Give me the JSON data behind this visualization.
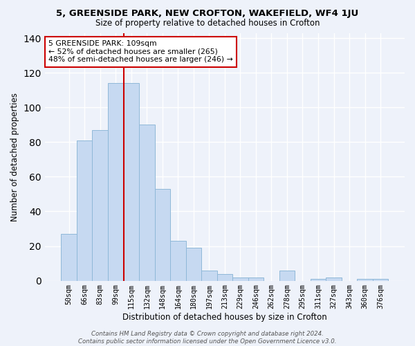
{
  "title1": "5, GREENSIDE PARK, NEW CROFTON, WAKEFIELD, WF4 1JU",
  "title2": "Size of property relative to detached houses in Crofton",
  "xlabel": "Distribution of detached houses by size in Crofton",
  "ylabel": "Number of detached properties",
  "bar_labels": [
    "50sqm",
    "66sqm",
    "83sqm",
    "99sqm",
    "115sqm",
    "132sqm",
    "148sqm",
    "164sqm",
    "180sqm",
    "197sqm",
    "213sqm",
    "229sqm",
    "246sqm",
    "262sqm",
    "278sqm",
    "295sqm",
    "311sqm",
    "327sqm",
    "343sqm",
    "360sqm",
    "376sqm"
  ],
  "bar_values": [
    27,
    81,
    87,
    114,
    114,
    90,
    53,
    23,
    19,
    6,
    4,
    2,
    2,
    0,
    6,
    0,
    1,
    2,
    0,
    1,
    1
  ],
  "bar_color": "#c6d9f1",
  "bar_edge_color": "#8fb8d8",
  "red_line_x": 3.5,
  "red_line_color": "#cc0000",
  "annotation_text": "5 GREENSIDE PARK: 109sqm\n← 52% of detached houses are smaller (265)\n48% of semi-detached houses are larger (246) →",
  "annotation_box_color": "white",
  "annotation_box_edge": "#cc0000",
  "footnote": "Contains HM Land Registry data © Crown copyright and database right 2024.\nContains public sector information licensed under the Open Government Licence v3.0.",
  "ylim": [
    0,
    143
  ],
  "background_color": "#eef2fa",
  "grid_color": "white"
}
